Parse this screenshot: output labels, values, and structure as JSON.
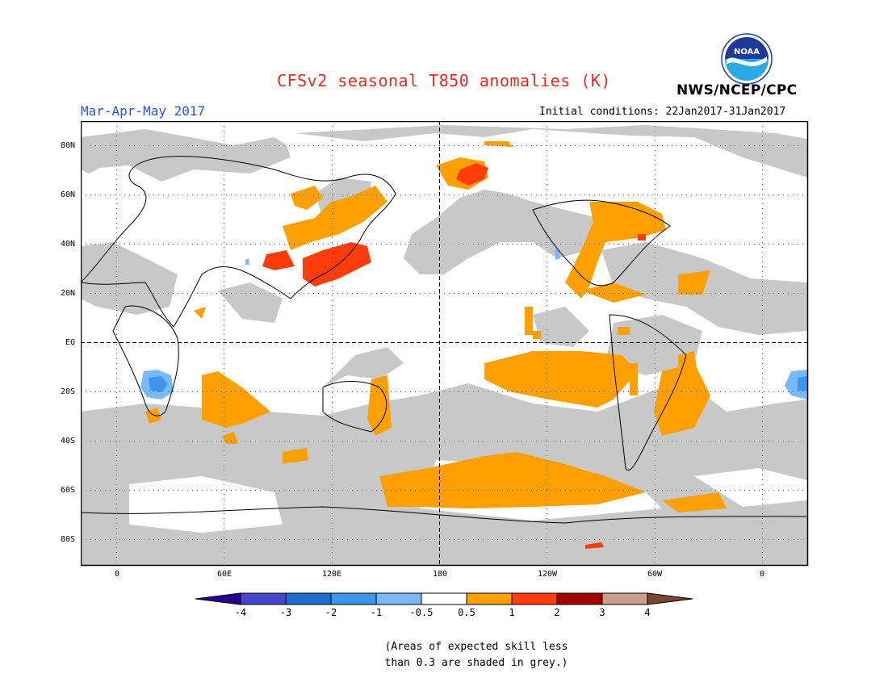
{
  "title": "CFSv2 seasonal T850 anomalies (K)",
  "organization": "NWS/NCEP/CPC",
  "logo_text": "NOAA",
  "season": "Mar-Apr-May 2017",
  "initial_conditions": "Initial conditions: 22Jan2017-31Jan2017",
  "lat_labels": [
    "80N",
    "60N",
    "40N",
    "20N",
    "EQ",
    "20S",
    "40S",
    "60S",
    "80S"
  ],
  "lon_labels": [
    "0",
    "60E",
    "120E",
    "180",
    "120W",
    "60W",
    "0"
  ],
  "colorbar": {
    "labels": [
      "-4",
      "-3",
      "-2",
      "-1",
      "-0.5",
      "0.5",
      "1",
      "2",
      "3",
      "4"
    ],
    "colors": [
      "#24008c",
      "#4646cc",
      "#1e6ed2",
      "#3c96f0",
      "#78b9f9",
      "#ffffff",
      "#ffa000",
      "#ff3c0a",
      "#a00000",
      "#c8a08c",
      "#784632"
    ]
  },
  "note_line1": "(Areas of expected skill less",
  "note_line2": "than 0.3 are shaded in grey.)",
  "legend_colors": {
    "low_skill_grey": "#c8c8c8",
    "anomaly_0_5_to_1": "#ffa000",
    "anomaly_1_to_2": "#ff3c0a",
    "anomaly_neg_0_5_to_1": "#78b9f9",
    "anomaly_neg_1_to_2": "#3c96f0"
  }
}
